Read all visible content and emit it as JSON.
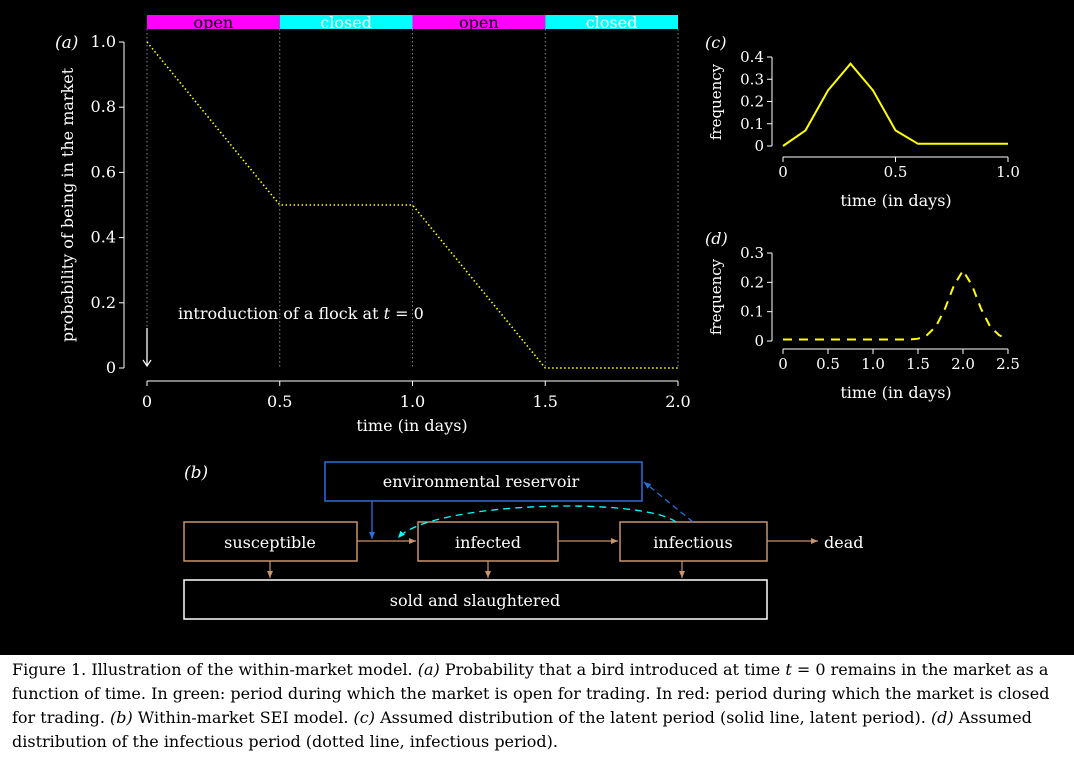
{
  "figure_a": {
    "panel_label": "(a)",
    "ylabel": "probability of being in the market",
    "xlabel": "time (in days)",
    "annotation_prefix": "introduction of a flock at ",
    "annotation_var": "t",
    "annotation_suffix": " = 0",
    "bar_colors": {
      "open": "#ff00ff",
      "closed": "#00ffff"
    },
    "line_color": "#ffff00",
    "chart_data": {
      "type": "line",
      "title": "",
      "xlabel": "time (in days)",
      "ylabel": "probability of being in the market",
      "xlim": [
        0,
        2.0
      ],
      "ylim": [
        0,
        1.0
      ],
      "xticks": [
        0,
        0.5,
        1.0,
        1.5,
        2.0
      ],
      "xtick_labels": [
        "0",
        "0.5",
        "1.0",
        "1.5",
        "2.0"
      ],
      "yticks": [
        0,
        0.2,
        0.4,
        0.6,
        0.8,
        1.0
      ],
      "ytick_labels": [
        "0",
        "0.2",
        "0.4",
        "0.6",
        "0.8",
        "1.0"
      ],
      "series": [
        {
          "x": [
            0,
            0.5,
            1.0,
            1.5,
            2.0
          ],
          "y": [
            1.0,
            0.5,
            0.5,
            0.0,
            0.0
          ]
        }
      ],
      "periods": [
        {
          "label": "open",
          "start": 0,
          "end": 0.5
        },
        {
          "label": "closed",
          "start": 0.5,
          "end": 1.0
        },
        {
          "label": "open",
          "start": 1.0,
          "end": 1.5
        },
        {
          "label": "closed",
          "start": 1.5,
          "end": 2.0
        }
      ]
    }
  },
  "figure_c": {
    "panel_label": "(c)",
    "line_color": "#ffff00",
    "chart_data": {
      "type": "line",
      "title": "",
      "xlabel": "time (in days)",
      "ylabel": "frequency",
      "xlim": [
        0,
        1.0
      ],
      "ylim": [
        0,
        0.4
      ],
      "xticks": [
        0,
        0.5,
        1.0
      ],
      "xtick_labels": [
        "0",
        "0.5",
        "1.0"
      ],
      "yticks": [
        0,
        0.1,
        0.2,
        0.3,
        0.4
      ],
      "ytick_labels": [
        "0",
        "0.1",
        "0.2",
        "0.3",
        "0.4"
      ],
      "series": [
        {
          "x": [
            0,
            0.1,
            0.2,
            0.3,
            0.4,
            0.5,
            0.6,
            0.7,
            0.8,
            0.9,
            1.0
          ],
          "y": [
            0.0,
            0.07,
            0.25,
            0.37,
            0.25,
            0.07,
            0.01,
            0.01,
            0.01,
            0.01,
            0.01
          ]
        }
      ]
    }
  },
  "figure_d": {
    "panel_label": "(d)",
    "line_color": "#ffff00",
    "chart_data": {
      "type": "line",
      "title": "",
      "xlabel": "time (in days)",
      "ylabel": "frequency",
      "xlim": [
        0,
        2.5
      ],
      "ylim": [
        0,
        0.3
      ],
      "xticks": [
        0,
        0.5,
        1.0,
        1.5,
        2.0,
        2.5
      ],
      "xtick_labels": [
        "0",
        "0.5",
        "1.0",
        "1.5",
        "2.0",
        "2.5"
      ],
      "yticks": [
        0,
        0.1,
        0.2,
        0.3
      ],
      "ytick_labels": [
        "0",
        "0.1",
        "0.2",
        "0.3"
      ],
      "series": [
        {
          "x": [
            0,
            0.5,
            1.0,
            1.4,
            1.5,
            1.6,
            1.7,
            1.8,
            1.9,
            2.0,
            2.1,
            2.2,
            2.3,
            2.4,
            2.5
          ],
          "y": [
            0.005,
            0.005,
            0.005,
            0.005,
            0.008,
            0.02,
            0.05,
            0.11,
            0.19,
            0.24,
            0.19,
            0.11,
            0.05,
            0.02,
            0.005
          ]
        }
      ]
    }
  },
  "diagram_b": {
    "panel_label": "(b)",
    "nodes": {
      "reservoir": "environmental reservoir",
      "susceptible": "susceptible",
      "infected": "infected",
      "infectious": "infectious",
      "dead": "dead",
      "sold": "sold and slaughtered"
    },
    "colors": {
      "node_border": "#c8946a",
      "reservoir_border": "#2a6fdb",
      "arrow_brown": "#c8946a",
      "arrow_blue": "#2a6fdb",
      "arrow_cyan": "#00ffff"
    }
  },
  "caption": {
    "figure_label": "Figure 1.",
    "parts": [
      {
        "text": " Illustration of the within-market model. ",
        "italic": false
      },
      {
        "text": "(a)",
        "italic": true
      },
      {
        "text": " Probability that a bird introduced at time ",
        "italic": false
      },
      {
        "text": "t",
        "italic": true
      },
      {
        "text": " = 0 remains in the market as a function of time. In green: period during which the market is open for trading. In red: period during which the market is closed for trading. ",
        "italic": false
      },
      {
        "text": "(b)",
        "italic": true
      },
      {
        "text": " Within-market SEI model. ",
        "italic": false
      },
      {
        "text": "(c)",
        "italic": true
      },
      {
        "text": " Assumed distribution of the latent period (solid line, latent period). ",
        "italic": false
      },
      {
        "text": "(d)",
        "italic": true
      },
      {
        "text": " Assumed distribution of the infectious period (dotted line, infectious period).",
        "italic": false
      }
    ]
  }
}
